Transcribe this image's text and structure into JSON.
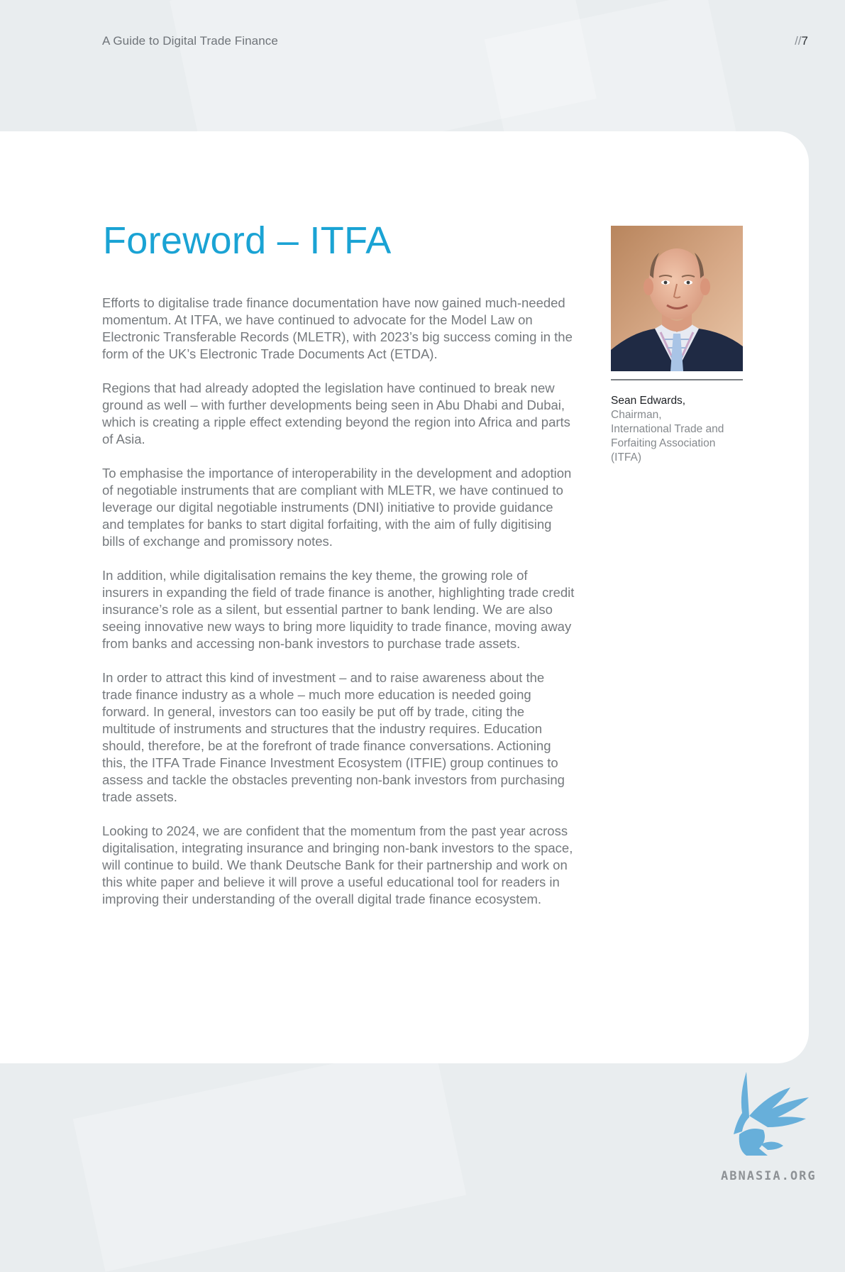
{
  "header": {
    "doc_title": "A Guide to Digital Trade Finance",
    "page_prefix": "//",
    "page_number": "7"
  },
  "main": {
    "title": "Foreword – ITFA",
    "paragraphs": [
      "Efforts to digitalise trade finance documentation have now gained much-needed momentum. At ITFA, we have continued to advocate for the Model Law on Electronic Transferable Records (MLETR), with 2023’s big success coming in the form of the UK’s Electronic Trade Documents Act (ETDA).",
      "Regions that had already adopted the legislation have continued to break new ground as well – with further developments being seen in Abu Dhabi and Dubai, which is creating a ripple effect extending beyond the region into Africa and parts of Asia.",
      "To emphasise the importance of interoperability in the development and adoption of negotiable instruments that are compliant with MLETR, we have continued to leverage our digital negotiable instruments (DNI) initiative to provide guidance and templates for banks to start digital forfaiting, with the aim of fully digitising bills of exchange and promissory notes.",
      "In addition, while digitalisation remains the key theme, the growing role of insurers in expanding the field of trade finance is another, highlighting trade credit insurance’s role as a silent, but essential partner to bank lending. We are also seeing innovative new ways to bring more liquidity to trade finance, moving away from banks and accessing non-bank investors to purchase trade assets.",
      "In order to attract this kind of investment – and to raise awareness about the trade finance industry as a whole – much more education is needed going forward. In general, investors can too easily be put off by trade, citing the multitude of instruments and structures that the industry requires. Education should, therefore, be at the forefront of trade finance conversations. Actioning this, the ITFA Trade Finance Investment Ecosystem (ITFIE) group continues to assess and tackle the obstacles preventing non-bank investors from purchasing trade assets.",
      "Looking to 2024, we are confident that the momentum from the past year across digitalisation, integrating insurance and bringing non-bank investors to the space, will continue to build. We thank Deutsche Bank for their partnership and work on this white paper and believe it will prove a useful educational tool for readers in improving their understanding of the overall digital trade finance ecosystem."
    ]
  },
  "sidebar": {
    "name": "Sean Edwards,",
    "role_lines": [
      "Chairman,",
      "International Trade and",
      "Forfaiting Association",
      "(ITFA)"
    ]
  },
  "watermark": {
    "text": "ABNASIA.ORG"
  },
  "colors": {
    "accent": "#1aa3d4",
    "body_text": "#75797d",
    "page_bg": "#e9edef"
  },
  "icons": {
    "logo": "griffin-logo-icon"
  }
}
